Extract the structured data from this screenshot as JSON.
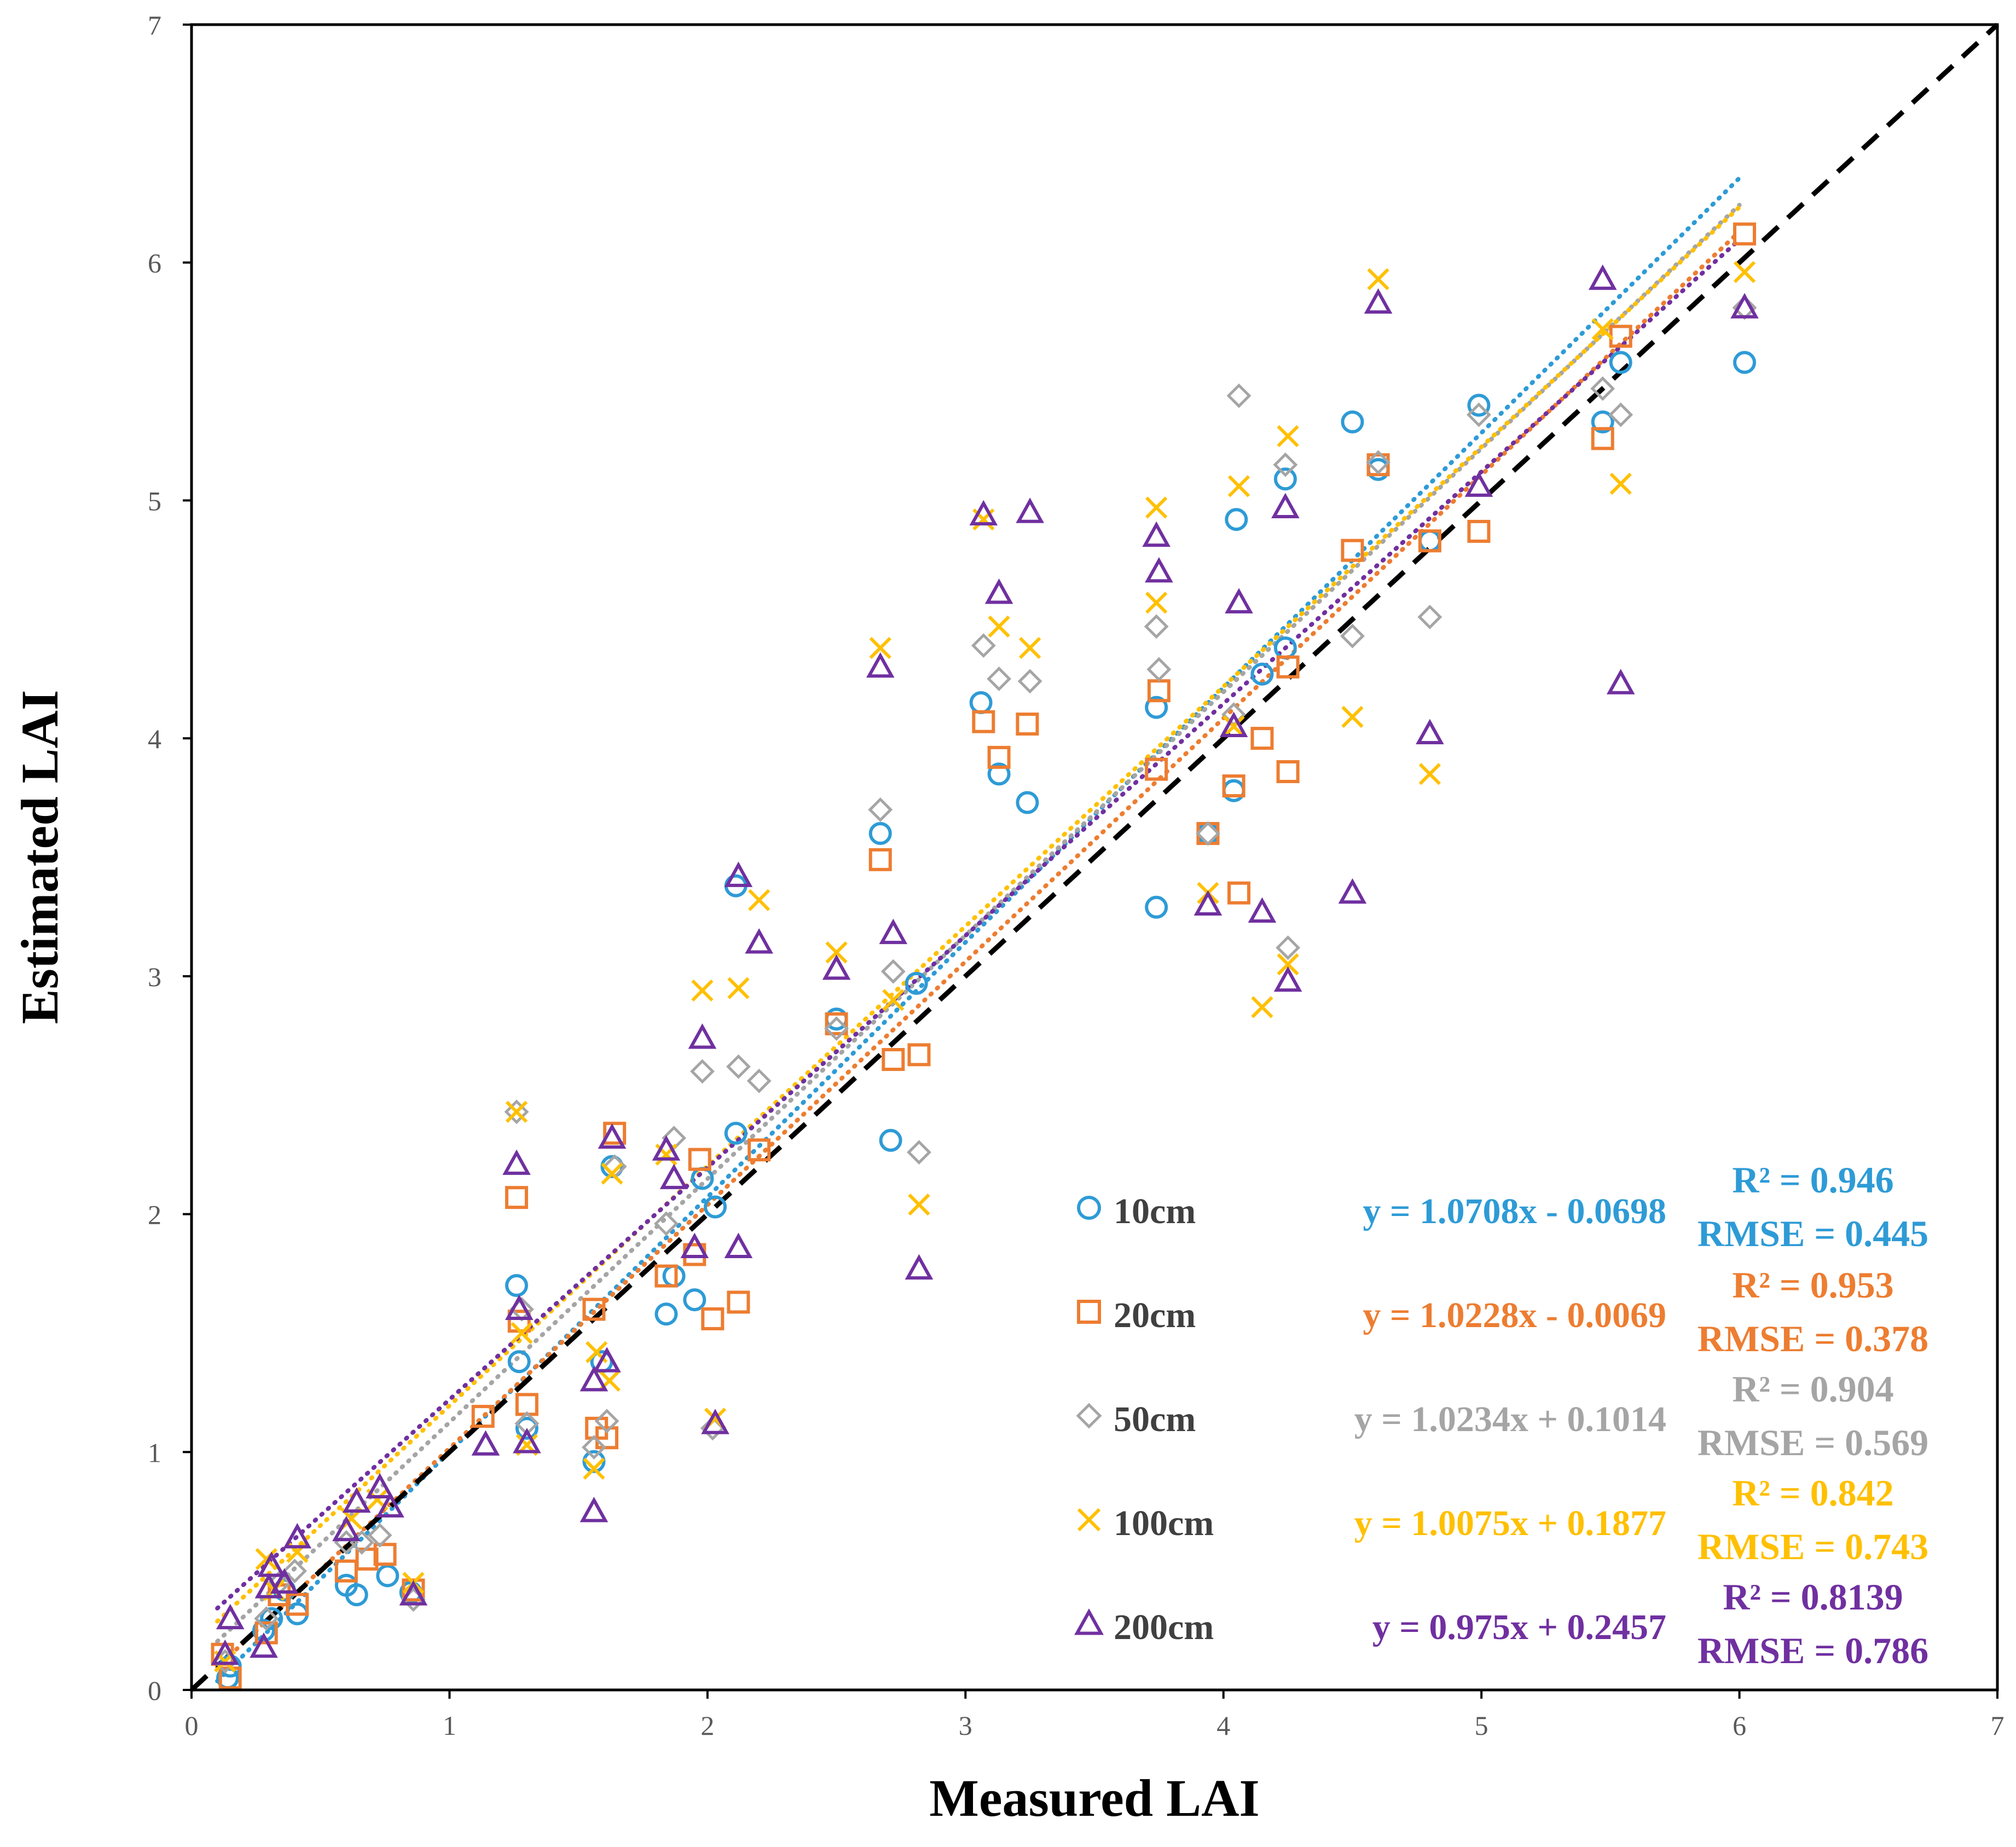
{
  "chart_data": {
    "type": "scatter",
    "title": "",
    "xlabel": "Measured LAI",
    "ylabel": "Estimated LAI",
    "xlim": [
      0,
      7
    ],
    "ylim": [
      0,
      7
    ],
    "xticks": [
      "0",
      "1",
      "2",
      "3",
      "4",
      "5",
      "6",
      "7"
    ],
    "yticks": [
      "0",
      "1",
      "2",
      "3",
      "4",
      "5",
      "6",
      "7"
    ],
    "one_to_one_line": true,
    "series": [
      {
        "name": "10cm",
        "marker": "circle",
        "color": "#2E9BD6",
        "equation": "y = 1.0708x - 0.0698",
        "slope": 1.0708,
        "intercept": -0.0698,
        "r2_label": "R² = 0.946",
        "rmse_label": "RMSE = 0.445",
        "points": [
          [
            0.14,
            0.05
          ],
          [
            0.15,
            0.1
          ],
          [
            0.28,
            0.25
          ],
          [
            0.31,
            0.3
          ],
          [
            0.36,
            0.42
          ],
          [
            0.41,
            0.32
          ],
          [
            0.6,
            0.44
          ],
          [
            0.64,
            0.4
          ],
          [
            0.76,
            0.48
          ],
          [
            0.85,
            0.41
          ],
          [
            1.26,
            1.7
          ],
          [
            1.27,
            1.38
          ],
          [
            1.3,
            1.1
          ],
          [
            1.56,
            0.96
          ],
          [
            1.59,
            1.38
          ],
          [
            1.63,
            2.2
          ],
          [
            1.84,
            1.58
          ],
          [
            1.87,
            1.74
          ],
          [
            1.95,
            1.64
          ],
          [
            1.98,
            2.15
          ],
          [
            2.03,
            2.03
          ],
          [
            2.11,
            2.34
          ],
          [
            2.11,
            3.38
          ],
          [
            2.5,
            2.82
          ],
          [
            2.67,
            3.6
          ],
          [
            2.71,
            2.31
          ],
          [
            2.81,
            2.97
          ],
          [
            3.06,
            4.15
          ],
          [
            3.13,
            3.85
          ],
          [
            3.24,
            3.73
          ],
          [
            3.74,
            4.13
          ],
          [
            3.74,
            3.29
          ],
          [
            3.94,
            3.6
          ],
          [
            4.04,
            3.78
          ],
          [
            4.05,
            4.92
          ],
          [
            4.15,
            4.27
          ],
          [
            4.24,
            5.09
          ],
          [
            4.24,
            4.38
          ],
          [
            4.5,
            5.33
          ],
          [
            4.6,
            5.13
          ],
          [
            4.8,
            4.83
          ],
          [
            4.99,
            5.4
          ],
          [
            5.47,
            5.33
          ],
          [
            5.54,
            5.58
          ],
          [
            6.02,
            5.58
          ]
        ]
      },
      {
        "name": "20cm",
        "marker": "square",
        "color": "#ED7D31",
        "equation": "y = 1.0228x - 0.0069",
        "slope": 1.0228,
        "intercept": -0.0069,
        "r2_label": "R² = 0.953",
        "rmse_label": "RMSE = 0.378",
        "points": [
          [
            0.12,
            0.15
          ],
          [
            0.15,
            0.05
          ],
          [
            0.29,
            0.24
          ],
          [
            0.34,
            0.4
          ],
          [
            0.41,
            0.36
          ],
          [
            0.6,
            0.5
          ],
          [
            0.68,
            0.55
          ],
          [
            0.75,
            0.57
          ],
          [
            0.86,
            0.42
          ],
          [
            1.13,
            1.15
          ],
          [
            1.26,
            2.07
          ],
          [
            1.27,
            1.55
          ],
          [
            1.3,
            1.2
          ],
          [
            1.56,
            1.6
          ],
          [
            1.57,
            1.1
          ],
          [
            1.61,
            1.06
          ],
          [
            1.64,
            2.34
          ],
          [
            1.84,
            1.74
          ],
          [
            1.95,
            1.83
          ],
          [
            1.97,
            2.23
          ],
          [
            2.02,
            1.56
          ],
          [
            2.12,
            1.63
          ],
          [
            2.2,
            2.27
          ],
          [
            2.5,
            2.8
          ],
          [
            2.67,
            3.49
          ],
          [
            2.72,
            2.65
          ],
          [
            2.82,
            2.67
          ],
          [
            3.07,
            4.07
          ],
          [
            3.13,
            3.92
          ],
          [
            3.24,
            4.06
          ],
          [
            3.74,
            3.87
          ],
          [
            3.75,
            4.2
          ],
          [
            3.94,
            3.6
          ],
          [
            4.04,
            3.8
          ],
          [
            4.06,
            3.35
          ],
          [
            4.15,
            4.0
          ],
          [
            4.25,
            3.86
          ],
          [
            4.25,
            4.3
          ],
          [
            4.5,
            4.79
          ],
          [
            4.6,
            5.15
          ],
          [
            4.8,
            4.83
          ],
          [
            4.99,
            4.87
          ],
          [
            5.47,
            5.26
          ],
          [
            5.54,
            5.69
          ],
          [
            6.02,
            6.12
          ]
        ]
      },
      {
        "name": "50cm",
        "marker": "diamond",
        "color": "#A5A5A5",
        "equation": "y = 1.0234x + 0.1014",
        "slope": 1.0234,
        "intercept": 0.1014,
        "r2_label": "R² = 0.904",
        "rmse_label": "RMSE = 0.569",
        "points": [
          [
            0.13,
            0.12
          ],
          [
            0.29,
            0.3
          ],
          [
            0.34,
            0.45
          ],
          [
            0.4,
            0.5
          ],
          [
            0.6,
            0.62
          ],
          [
            0.66,
            0.62
          ],
          [
            0.73,
            0.65
          ],
          [
            0.86,
            0.38
          ],
          [
            1.26,
            2.43
          ],
          [
            1.28,
            1.6
          ],
          [
            1.3,
            1.12
          ],
          [
            1.56,
            1.02
          ],
          [
            1.61,
            1.13
          ],
          [
            1.64,
            2.2
          ],
          [
            1.84,
            1.96
          ],
          [
            1.87,
            2.32
          ],
          [
            1.98,
            2.6
          ],
          [
            2.02,
            1.1
          ],
          [
            2.12,
            2.62
          ],
          [
            2.2,
            2.56
          ],
          [
            2.5,
            2.78
          ],
          [
            2.67,
            3.7
          ],
          [
            2.72,
            3.02
          ],
          [
            2.82,
            2.26
          ],
          [
            3.07,
            4.39
          ],
          [
            3.13,
            4.25
          ],
          [
            3.25,
            4.24
          ],
          [
            3.74,
            4.47
          ],
          [
            3.75,
            4.29
          ],
          [
            3.94,
            3.6
          ],
          [
            4.04,
            4.1
          ],
          [
            4.06,
            5.44
          ],
          [
            4.24,
            5.15
          ],
          [
            4.25,
            3.12
          ],
          [
            4.5,
            4.43
          ],
          [
            4.6,
            5.16
          ],
          [
            4.8,
            4.51
          ],
          [
            4.99,
            5.36
          ],
          [
            5.47,
            5.47
          ],
          [
            5.54,
            5.36
          ],
          [
            6.02,
            5.81
          ]
        ]
      },
      {
        "name": "100cm",
        "marker": "x",
        "color": "#FFC000",
        "equation": "y = 1.0075x + 0.1877",
        "slope": 1.0075,
        "intercept": 0.1877,
        "r2_label": "R² = 0.842",
        "rmse_label": "RMSE = 0.743",
        "points": [
          [
            0.13,
            0.12
          ],
          [
            0.29,
            0.55
          ],
          [
            0.32,
            0.42
          ],
          [
            0.41,
            0.58
          ],
          [
            0.62,
            0.72
          ],
          [
            0.72,
            0.8
          ],
          [
            0.86,
            0.45
          ],
          [
            1.26,
            2.43
          ],
          [
            1.28,
            1.5
          ],
          [
            1.3,
            1.03
          ],
          [
            1.56,
            0.93
          ],
          [
            1.57,
            1.42
          ],
          [
            1.62,
            1.3
          ],
          [
            1.63,
            2.17
          ],
          [
            1.84,
            2.25
          ],
          [
            1.98,
            2.94
          ],
          [
            2.03,
            1.14
          ],
          [
            2.12,
            2.95
          ],
          [
            2.2,
            3.32
          ],
          [
            2.5,
            3.1
          ],
          [
            2.67,
            4.38
          ],
          [
            2.72,
            2.9
          ],
          [
            2.82,
            2.04
          ],
          [
            3.07,
            4.92
          ],
          [
            3.13,
            4.47
          ],
          [
            3.25,
            4.38
          ],
          [
            3.74,
            4.97
          ],
          [
            3.74,
            4.57
          ],
          [
            3.94,
            3.35
          ],
          [
            4.04,
            4.05
          ],
          [
            4.06,
            5.06
          ],
          [
            4.15,
            2.87
          ],
          [
            4.25,
            5.27
          ],
          [
            4.25,
            3.05
          ],
          [
            4.5,
            4.09
          ],
          [
            4.6,
            5.93
          ],
          [
            4.8,
            3.85
          ],
          [
            5.47,
            5.72
          ],
          [
            5.54,
            5.07
          ],
          [
            6.02,
            5.96
          ]
        ]
      },
      {
        "name": "200cm",
        "marker": "triangle",
        "color": "#7030A0",
        "equation": "y = 0.975x + 0.2457",
        "slope": 0.975,
        "intercept": 0.2457,
        "r2_label": "R² = 0.8139",
        "rmse_label": "RMSE = 0.786",
        "points": [
          [
            0.13,
            0.15
          ],
          [
            0.15,
            0.3
          ],
          [
            0.28,
            0.18
          ],
          [
            0.3,
            0.43
          ],
          [
            0.31,
            0.52
          ],
          [
            0.36,
            0.45
          ],
          [
            0.41,
            0.64
          ],
          [
            0.6,
            0.67
          ],
          [
            0.64,
            0.79
          ],
          [
            0.73,
            0.85
          ],
          [
            0.77,
            0.77
          ],
          [
            0.86,
            0.4
          ],
          [
            1.14,
            1.03
          ],
          [
            1.26,
            2.21
          ],
          [
            1.27,
            1.6
          ],
          [
            1.3,
            1.04
          ],
          [
            1.56,
            0.75
          ],
          [
            1.56,
            1.3
          ],
          [
            1.61,
            1.38
          ],
          [
            1.63,
            2.32
          ],
          [
            1.84,
            2.27
          ],
          [
            1.87,
            2.15
          ],
          [
            1.95,
            1.86
          ],
          [
            1.98,
            2.74
          ],
          [
            2.03,
            1.12
          ],
          [
            2.12,
            1.86
          ],
          [
            2.12,
            3.42
          ],
          [
            2.2,
            3.14
          ],
          [
            2.5,
            3.03
          ],
          [
            2.67,
            4.3
          ],
          [
            2.72,
            3.18
          ],
          [
            2.82,
            1.77
          ],
          [
            3.07,
            4.94
          ],
          [
            3.13,
            4.61
          ],
          [
            3.25,
            4.95
          ],
          [
            3.74,
            4.85
          ],
          [
            3.75,
            4.7
          ],
          [
            3.94,
            3.3
          ],
          [
            4.04,
            4.05
          ],
          [
            4.06,
            4.57
          ],
          [
            4.15,
            3.27
          ],
          [
            4.24,
            4.97
          ],
          [
            4.25,
            2.98
          ],
          [
            4.5,
            3.35
          ],
          [
            4.6,
            5.83
          ],
          [
            4.8,
            4.02
          ],
          [
            4.99,
            5.06
          ],
          [
            5.47,
            5.93
          ],
          [
            5.54,
            4.23
          ],
          [
            6.02,
            5.81
          ]
        ]
      }
    ]
  }
}
